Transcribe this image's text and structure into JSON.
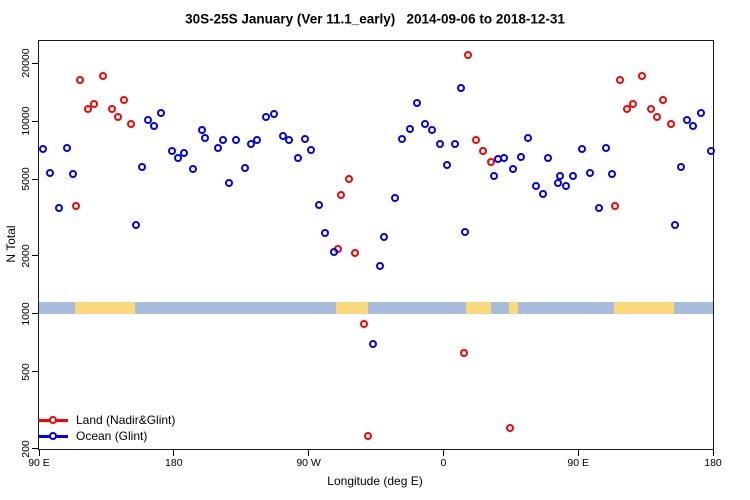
{
  "title": "30S-25S January (Ver 11.1_early)   2014-09-06 to 2018-12-31",
  "legend": [
    {
      "label": "Land (Nadir&Glint)",
      "color": "#ff0000"
    },
    {
      "label": "Ocean (Glint)",
      "color": "#0000ff"
    }
  ],
  "colors": {
    "land_points": "#ff0000",
    "ocean_points": "#0000ff",
    "band_ocean": "#a8bcdc",
    "band_land": "#fcd87c",
    "axis": "#000000"
  },
  "chart_data": {
    "type": "scatter",
    "title": "30S-25S January (Ver 11.1_early)   2014-09-06 to 2018-12-31",
    "xlabel": "Longitude (deg E)",
    "ylabel": "N Total",
    "y_scale": "log",
    "x_range": [
      90,
      540
    ],
    "y_range": [
      199,
      26000
    ],
    "x_ticks": [
      {
        "value": 90,
        "label": "90 E"
      },
      {
        "value": 180,
        "label": "180"
      },
      {
        "value": 270,
        "label": "90 W"
      },
      {
        "value": 360,
        "label": "0"
      },
      {
        "value": 450,
        "label": "90 E"
      },
      {
        "value": 540,
        "label": "180"
      }
    ],
    "y_ticks": [
      {
        "value": 20000,
        "label": "20000"
      },
      {
        "value": 10000,
        "label": "10000"
      },
      {
        "value": 5000,
        "label": "5000"
      },
      {
        "value": 2000,
        "label": "2000"
      },
      {
        "value": 1000,
        "label": "1000"
      },
      {
        "value": 500,
        "label": "500"
      },
      {
        "value": 200,
        "label": "200"
      }
    ],
    "band": {
      "description": "land/ocean strip for 30S-25S",
      "value_top": 1150,
      "value_bottom": 1000,
      "ocean_extent": [
        90,
        540
      ],
      "land_segments": [
        [
          114,
          154
        ],
        [
          288,
          310
        ],
        [
          375,
          392
        ],
        [
          404,
          410
        ],
        [
          474,
          514
        ]
      ]
    },
    "legend_position": "bottom-left",
    "grid": false,
    "series": [
      {
        "name": "Land (Nadir&Glint)",
        "color": "#ff0000",
        "points": [
          [
            118,
            16300
          ],
          [
            133,
            17000
          ],
          [
            123,
            11500
          ],
          [
            127,
            12200
          ],
          [
            139,
            11500
          ],
          [
            147,
            12800
          ],
          [
            143,
            10400
          ],
          [
            152,
            9600
          ],
          [
            115,
            3630
          ],
          [
            297,
            5000
          ],
          [
            292,
            4140
          ],
          [
            290,
            2170
          ],
          [
            301,
            2060
          ],
          [
            307,
            880
          ],
          [
            310,
            232
          ],
          [
            377,
            22000
          ],
          [
            382,
            7960
          ],
          [
            387,
            7000
          ],
          [
            392,
            6090
          ],
          [
            374,
            625
          ],
          [
            405,
            254
          ],
          [
            478,
            16300
          ],
          [
            493,
            17000
          ],
          [
            483,
            11500
          ],
          [
            487,
            12200
          ],
          [
            499,
            11500
          ],
          [
            507,
            12800
          ],
          [
            503,
            10400
          ],
          [
            512,
            9600
          ],
          [
            475,
            3630
          ]
        ]
      },
      {
        "name": "Ocean (Glint)",
        "color": "#0000ff",
        "points": [
          [
            163,
            10100
          ],
          [
            167,
            9440
          ],
          [
            172,
            10900
          ],
          [
            199,
            8950
          ],
          [
            201,
            8180
          ],
          [
            93,
            7150
          ],
          [
            109,
            7230
          ],
          [
            98,
            5340
          ],
          [
            113,
            5300
          ],
          [
            159,
            5780
          ],
          [
            179,
            7000
          ],
          [
            183,
            6420
          ],
          [
            187,
            6780
          ],
          [
            193,
            5630
          ],
          [
            104,
            3520
          ],
          [
            155,
            2890
          ],
          [
            213,
            7960
          ],
          [
            222,
            7900
          ],
          [
            210,
            7230
          ],
          [
            232,
            7600
          ],
          [
            236,
            7960
          ],
          [
            242,
            10400
          ],
          [
            247,
            10800
          ],
          [
            253,
            8300
          ],
          [
            257,
            7900
          ],
          [
            268,
            8000
          ],
          [
            272,
            7040
          ],
          [
            263,
            6420
          ],
          [
            228,
            5690
          ],
          [
            217,
            4740
          ],
          [
            277,
            3670
          ],
          [
            281,
            2610
          ],
          [
            287,
            2090
          ],
          [
            318,
            1770
          ],
          [
            313,
            690
          ],
          [
            372,
            14700
          ],
          [
            343,
            12300
          ],
          [
            348,
            9640
          ],
          [
            338,
            9100
          ],
          [
            353,
            9000
          ],
          [
            333,
            8000
          ],
          [
            358,
            7550
          ],
          [
            368,
            7600
          ],
          [
            397,
            6340
          ],
          [
            401,
            6420
          ],
          [
            412,
            6450
          ],
          [
            407,
            5630
          ],
          [
            394,
            5190
          ],
          [
            363,
            5860
          ],
          [
            417,
            8100
          ],
          [
            430,
            6400
          ],
          [
            422,
            4600
          ],
          [
            427,
            4150
          ],
          [
            328,
            3980
          ],
          [
            375,
            2640
          ],
          [
            321,
            2490
          ],
          [
            438,
            5190
          ],
          [
            437,
            4740
          ],
          [
            442,
            4600
          ],
          [
            447,
            5190
          ],
          [
            453,
            7150
          ],
          [
            469,
            7230
          ],
          [
            458,
            5340
          ],
          [
            473,
            5300
          ],
          [
            464,
            3520
          ],
          [
            515,
            2890
          ],
          [
            519,
            5780
          ],
          [
            523,
            10100
          ],
          [
            527,
            9440
          ],
          [
            532,
            10900
          ],
          [
            539,
            7000
          ]
        ]
      }
    ]
  }
}
